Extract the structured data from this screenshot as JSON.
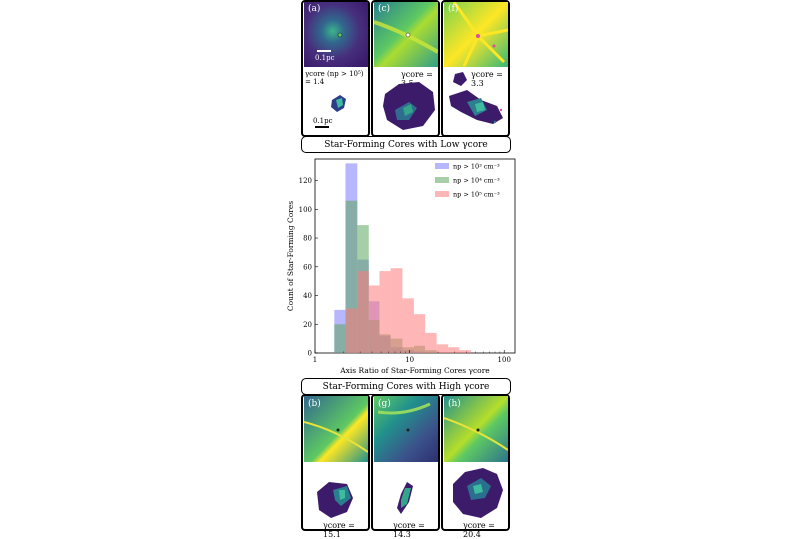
{
  "top_banner": "Star-Forming Cores with Low γcore",
  "bottom_banner": "Star-Forming Cores with High γcore",
  "panels_top": [
    {
      "tag": "(a)",
      "caption": "γcore (np > 10⁵) = 1.4",
      "scale": "0.1pc",
      "scale2": "0.1pc"
    },
    {
      "tag": "(c)",
      "caption": "γcore = 3.5"
    },
    {
      "tag": "(f)",
      "caption": "γcore = 3.3"
    }
  ],
  "panels_bottom": [
    {
      "tag": "(b)",
      "caption": "γcore = 15.1"
    },
    {
      "tag": "(g)",
      "caption": "γcore = 14.3"
    },
    {
      "tag": "(h)",
      "caption": "γcore = 20.4"
    }
  ],
  "colors": {
    "blue": "#7b7bff",
    "green": "#5fa85f",
    "red": "#ff7a7a"
  },
  "chart_data": {
    "type": "bar",
    "subtype": "histogram",
    "xlabel": "Axis Ratio of Star-Forming Cores γcore",
    "ylabel": "Count of Star-Forming Cores",
    "xscale": "log",
    "xlim": [
      1,
      130
    ],
    "ylim": [
      0,
      135
    ],
    "xticks": [
      1,
      10,
      100
    ],
    "xtick_labels": [
      "1",
      "10",
      "100"
    ],
    "yticks": [
      0,
      20,
      40,
      60,
      80,
      100,
      120
    ],
    "grid": false,
    "legend_position": "top-right",
    "bin_edges": [
      1.6,
      2.1,
      2.8,
      3.7,
      4.8,
      6.3,
      8.4,
      11.1,
      14.6,
      19.3,
      25.5,
      33.6,
      44.4,
      58.6,
      77.3
    ],
    "series": [
      {
        "name": "np > 10³ cm⁻³",
        "color": "#7b7bff",
        "values": [
          30,
          132,
          65,
          36,
          12,
          4,
          2,
          1,
          0,
          0,
          0,
          0,
          0,
          0
        ]
      },
      {
        "name": "np > 10⁴ cm⁻³",
        "color": "#5fa85f",
        "values": [
          20,
          106,
          89,
          23,
          13,
          10,
          4,
          5,
          2,
          0,
          0,
          0,
          0,
          0
        ]
      },
      {
        "name": "np > 10⁵ cm⁻³",
        "color": "#ff7a7a",
        "values": [
          0,
          31,
          57,
          47,
          57,
          59,
          38,
          27,
          14,
          6,
          4,
          2,
          0,
          0
        ]
      }
    ]
  }
}
